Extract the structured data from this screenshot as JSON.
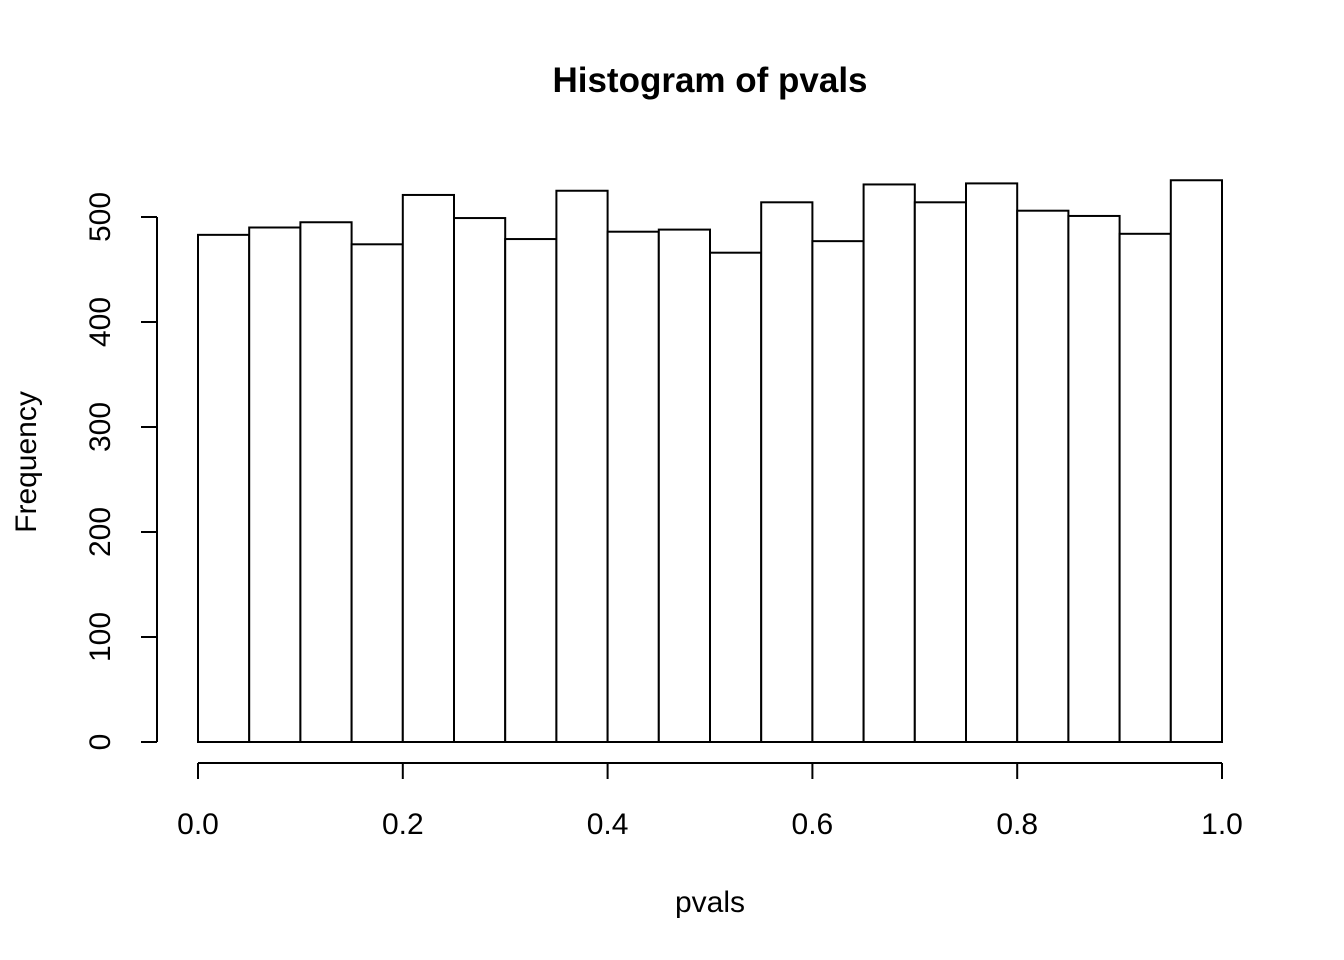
{
  "chart_data": {
    "type": "bar",
    "title": "Histogram of pvals",
    "xlabel": "pvals",
    "ylabel": "Frequency",
    "bin_edges": [
      0.0,
      0.05,
      0.1,
      0.15,
      0.2,
      0.25,
      0.3,
      0.35,
      0.4,
      0.45,
      0.5,
      0.55,
      0.6,
      0.65,
      0.7,
      0.75,
      0.8,
      0.85,
      0.9,
      0.95,
      1.0
    ],
    "values": [
      483,
      490,
      495,
      474,
      521,
      499,
      479,
      525,
      486,
      488,
      466,
      514,
      477,
      531,
      514,
      532,
      506,
      501,
      484,
      535
    ],
    "xlim": [
      0.0,
      1.0
    ],
    "ylim": [
      0,
      535
    ],
    "x_ticks": [
      "0.0",
      "0.2",
      "0.4",
      "0.6",
      "0.8",
      "1.0"
    ],
    "y_ticks": [
      "0",
      "100",
      "200",
      "300",
      "400",
      "500"
    ],
    "grid": false,
    "bar_fill": "#ffffff",
    "bar_stroke": "#000000"
  }
}
